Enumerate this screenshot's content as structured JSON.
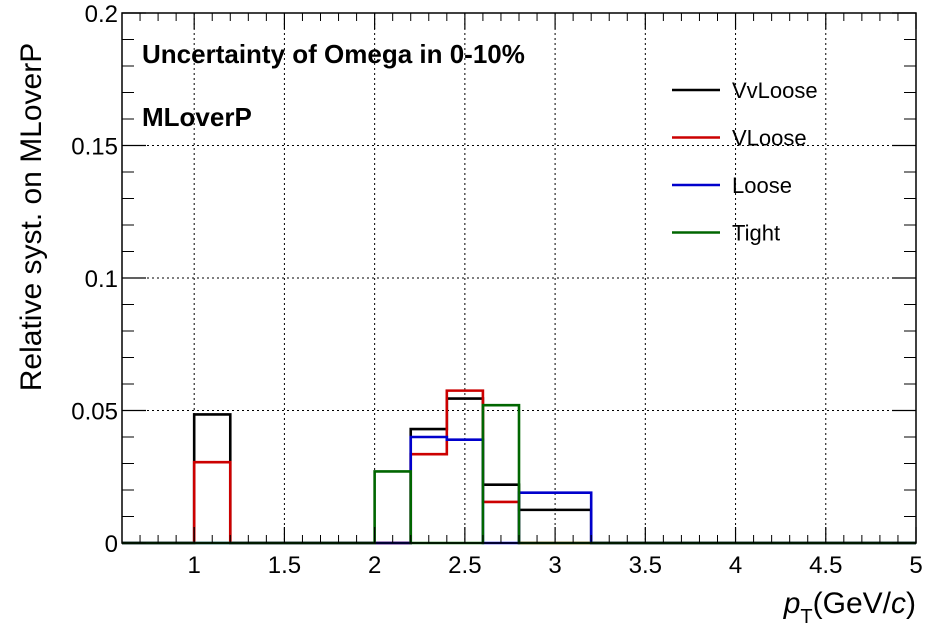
{
  "chart_data": {
    "type": "histogram-step",
    "annotations": [
      "Uncertainty of Omega in 0-10%",
      "MLoverP"
    ],
    "xlabel": {
      "main": "p",
      "sub": "T",
      "unit_prefix": "(GeV/",
      "unit_italic": "c",
      "unit_suffix": ")"
    },
    "ylabel": "Relative syst. on MLoverP",
    "xlim": [
      0.6,
      5.0
    ],
    "ylim": [
      0,
      0.2
    ],
    "x_ticks": [
      "1",
      "1.5",
      "2",
      "2.5",
      "3",
      "3.5",
      "4",
      "4.5",
      "5"
    ],
    "y_ticks": [
      "0",
      "0.05",
      "0.1",
      "0.15",
      "0.2"
    ],
    "grid": true,
    "legend_position": "top-right",
    "bin_edges": [
      0.6,
      0.8,
      1.0,
      1.2,
      1.4,
      1.6,
      1.8,
      2.0,
      2.2,
      2.4,
      2.6,
      2.8,
      3.0,
      3.2,
      3.4,
      3.6,
      3.8,
      4.0,
      4.2,
      4.4,
      4.6,
      4.8,
      5.0
    ],
    "series": [
      {
        "name": "VvLoose",
        "color": "#000000",
        "values": [
          0,
          0,
          0.0485,
          0,
          0,
          0,
          0,
          0,
          0.043,
          0.0545,
          0.022,
          0.0125,
          0.0125,
          0,
          0,
          0,
          0,
          0,
          0,
          0,
          0,
          0
        ]
      },
      {
        "name": "VLoose",
        "color": "#cc0000",
        "values": [
          0,
          0,
          0.0305,
          0,
          0,
          0,
          0,
          0,
          0.0335,
          0.0575,
          0.0155,
          0,
          0,
          0,
          0,
          0,
          0,
          0,
          0,
          0,
          0,
          0
        ]
      },
      {
        "name": "Loose",
        "color": "#0000cc",
        "values": [
          0,
          0,
          0,
          0,
          0,
          0,
          0,
          0,
          0.04,
          0.039,
          0,
          0.019,
          0.019,
          0,
          0,
          0,
          0,
          0,
          0,
          0,
          0,
          0
        ]
      },
      {
        "name": "Tight",
        "color": "#006600",
        "values": [
          0,
          0,
          0,
          0,
          0,
          0,
          0,
          0.027,
          0,
          0,
          0.052,
          0,
          0,
          0,
          0,
          0,
          0,
          0,
          0,
          0,
          0,
          0
        ]
      }
    ]
  }
}
